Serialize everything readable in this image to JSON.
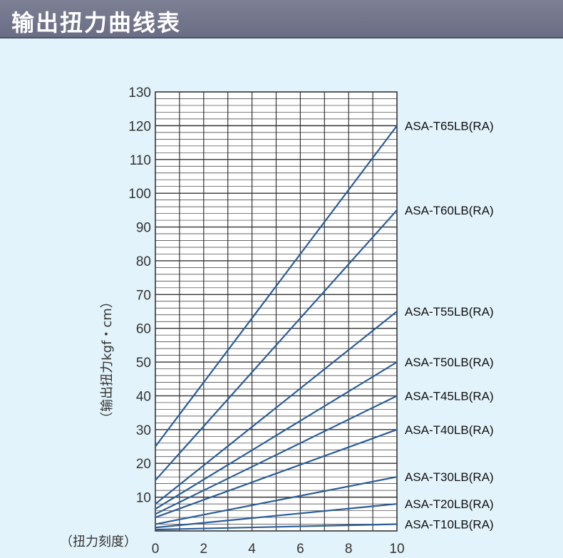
{
  "header": {
    "title": "输出扭力曲线表"
  },
  "colors": {
    "header_bg": "#6e7188",
    "page_bg": "#e2f3fb",
    "line": "#2a5d9a",
    "grid": "#333333"
  },
  "chart_data": {
    "type": "line",
    "title": "",
    "xlabel": "（扭力刻度）",
    "ylabel": "（输出扭力kgf・cm）",
    "xlim": [
      0,
      10
    ],
    "ylim": [
      0,
      130
    ],
    "x_ticks": [
      "0",
      "2",
      "4",
      "6",
      "8",
      "10"
    ],
    "y_ticks": [
      "10",
      "20",
      "30",
      "40",
      "50",
      "60",
      "70",
      "80",
      "90",
      "100",
      "110",
      "120",
      "130"
    ],
    "grid": true,
    "series": [
      {
        "name": "ASA-T65LB(RA)",
        "x": [
          0,
          10
        ],
        "y": [
          25,
          120
        ]
      },
      {
        "name": "ASA-T60LB(RA)",
        "x": [
          0,
          10
        ],
        "y": [
          15,
          95
        ]
      },
      {
        "name": "ASA-T55LB(RA)",
        "x": [
          0,
          10
        ],
        "y": [
          8,
          65
        ]
      },
      {
        "name": "ASA-T50LB(RA)",
        "x": [
          0,
          10
        ],
        "y": [
          6.5,
          50
        ]
      },
      {
        "name": "ASA-T45LB(RA)",
        "x": [
          0,
          10
        ],
        "y": [
          5,
          40
        ]
      },
      {
        "name": "ASA-T40LB(RA)",
        "x": [
          0,
          10
        ],
        "y": [
          4,
          30
        ]
      },
      {
        "name": "ASA-T30LB(RA)",
        "x": [
          0,
          10
        ],
        "y": [
          2,
          16
        ]
      },
      {
        "name": "ASA-T20LB(RA)",
        "x": [
          0,
          10
        ],
        "y": [
          1,
          8
        ]
      },
      {
        "name": "ASA-T10LB(RA)",
        "x": [
          0,
          10
        ],
        "y": [
          0.4,
          2
        ]
      }
    ]
  }
}
